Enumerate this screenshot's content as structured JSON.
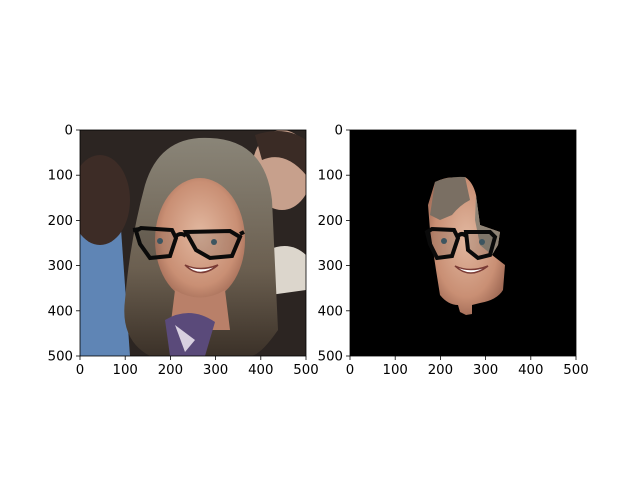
{
  "chart_data": [
    {
      "type": "image",
      "content": "portrait photo of a smiling woman with long hair wearing black glasses overlay",
      "xlim": [
        0,
        500
      ],
      "ylim": [
        500,
        0
      ],
      "x_ticks": [
        "0",
        "100",
        "200",
        "300",
        "400",
        "500"
      ],
      "y_ticks": [
        "0",
        "100",
        "200",
        "300",
        "400",
        "500"
      ],
      "background_color": "#3a2f2a"
    },
    {
      "type": "image",
      "content": "segmented face region of the same photo on black background with glasses overlay",
      "xlim": [
        0,
        500
      ],
      "ylim": [
        500,
        0
      ],
      "x_ticks": [
        "0",
        "100",
        "200",
        "300",
        "400",
        "500"
      ],
      "y_ticks": [
        "0",
        "100",
        "200",
        "300",
        "400",
        "500"
      ],
      "background_color": "#000000"
    }
  ]
}
